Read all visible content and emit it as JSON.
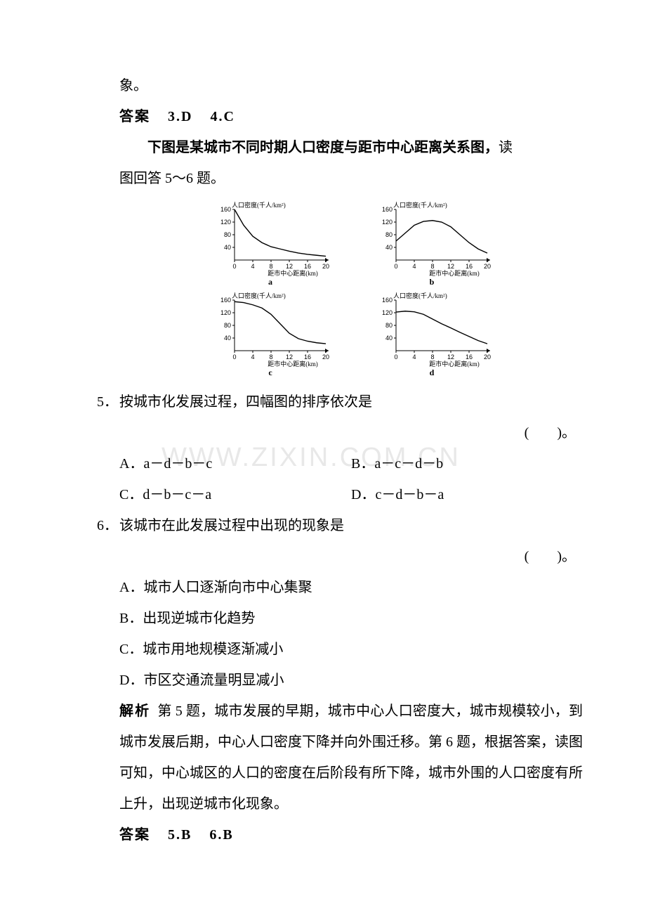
{
  "line_xiang": "象。",
  "answer_34": {
    "label": "答案",
    "a1": "3.D",
    "a2": "4.C"
  },
  "intro56": {
    "bold": "下图是某城市不同时期人口密度与距市中心距离关系图，",
    "normal_tail": "读",
    "line2": "图回答 5～6 题。"
  },
  "charts": {
    "ylabel": "人口密度(千人/km²)",
    "xlabel": "距市中心距离(km)",
    "yticks": [
      0,
      40,
      80,
      120,
      160
    ],
    "xticks": [
      0,
      4,
      8,
      12,
      16,
      20
    ],
    "axis_color": "#000000",
    "line_color": "#000000",
    "bg": "#ffffff",
    "width": 170,
    "height": 110,
    "a": {
      "label": "a",
      "points": [
        [
          0,
          160
        ],
        [
          2,
          110
        ],
        [
          4,
          75
        ],
        [
          6,
          55
        ],
        [
          8,
          42
        ],
        [
          10,
          35
        ],
        [
          12,
          28
        ],
        [
          14,
          22
        ],
        [
          16,
          18
        ],
        [
          18,
          15
        ],
        [
          20,
          12
        ]
      ]
    },
    "b": {
      "label": "b",
      "points": [
        [
          0,
          60
        ],
        [
          2,
          85
        ],
        [
          4,
          110
        ],
        [
          6,
          122
        ],
        [
          8,
          125
        ],
        [
          10,
          120
        ],
        [
          12,
          105
        ],
        [
          14,
          80
        ],
        [
          16,
          55
        ],
        [
          18,
          35
        ],
        [
          20,
          22
        ]
      ]
    },
    "c": {
      "label": "c",
      "points": [
        [
          0,
          155
        ],
        [
          2,
          152
        ],
        [
          4,
          145
        ],
        [
          6,
          135
        ],
        [
          8,
          115
        ],
        [
          10,
          85
        ],
        [
          12,
          55
        ],
        [
          14,
          38
        ],
        [
          16,
          30
        ],
        [
          18,
          25
        ],
        [
          20,
          22
        ]
      ]
    },
    "d": {
      "label": "d",
      "points": [
        [
          0,
          122
        ],
        [
          2,
          125
        ],
        [
          4,
          123
        ],
        [
          6,
          115
        ],
        [
          8,
          100
        ],
        [
          10,
          85
        ],
        [
          12,
          72
        ],
        [
          14,
          58
        ],
        [
          16,
          45
        ],
        [
          18,
          32
        ],
        [
          20,
          22
        ]
      ]
    }
  },
  "q5": {
    "num": "5．",
    "text": "按城市化发展过程，四幅图的排序依次是",
    "paren": "(　　)。",
    "options": {
      "A": "A．a－d－b－c",
      "B": "B．a－c－d－b",
      "C": "C．d－b－c－a",
      "D": "D．c－d－b－a"
    }
  },
  "q6": {
    "num": "6．",
    "text": "该城市在此发展过程中出现的现象是",
    "paren": "(　　)。",
    "options": {
      "A": "A．城市人口逐渐向市中心集聚",
      "B": "B．出现逆城市化趋势",
      "C": "C．城市用地规模逐渐减小",
      "D": "D．市区交通流量明显减小"
    }
  },
  "explain56": {
    "head": "解析",
    "text": "第 5 题，城市发展的早期，城市中心人口密度大，城市规模较小，到城市发展后期，中心人口密度下降并向外围迁移。第 6 题，根据答案，读图可知，中心城区的人口的密度在后阶段有所下降，城市外围的人口密度有所上升，出现逆城市化现象。"
  },
  "answer_56": {
    "label": "答案",
    "a1": "5.B",
    "a2": "6.B"
  },
  "watermark": "WWW.ZIXIN.COM.CN"
}
